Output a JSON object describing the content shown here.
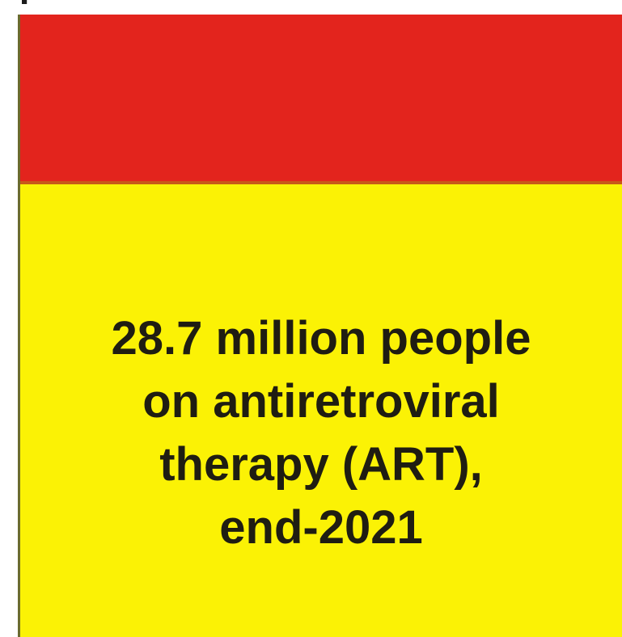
{
  "colors": {
    "top_band": "#e3241d",
    "panel": "#fbf205",
    "text": "#1f1d12"
  },
  "stat": {
    "lines": [
      "28.7 million people",
      "on antiretroviral",
      "therapy (ART),",
      "end-2021"
    ]
  }
}
